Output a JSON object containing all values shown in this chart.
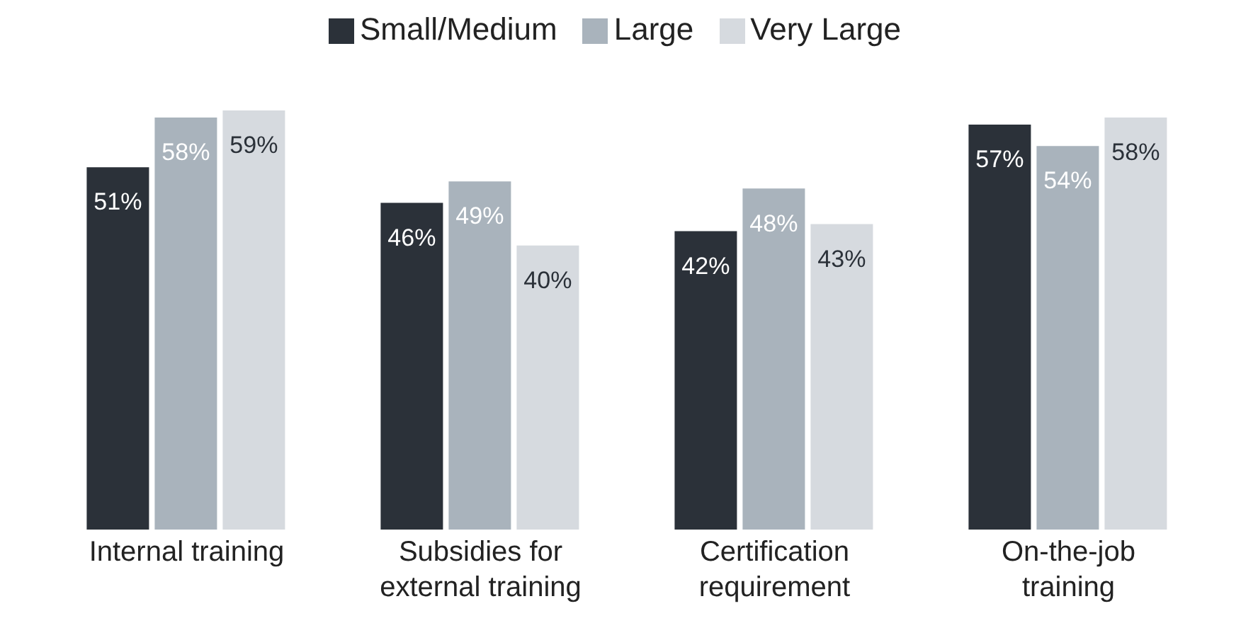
{
  "chart_data": {
    "type": "bar",
    "categories": [
      "Internal training",
      "Subsidies for external training",
      "Certification requirement",
      "On-the-job training"
    ],
    "series": [
      {
        "name": "Small/Medium",
        "color": "#2b3139",
        "values": [
          51,
          46,
          42,
          57
        ],
        "value_labels": [
          "51%",
          "46%",
          "42%",
          "57%"
        ]
      },
      {
        "name": "Large",
        "color": "#a9b3bc",
        "values": [
          58,
          49,
          48,
          54
        ],
        "value_labels": [
          "58%",
          "49%",
          "48%",
          "54%"
        ]
      },
      {
        "name": "Very Large",
        "color": "#d6dadf",
        "values": [
          59,
          40,
          43,
          58
        ],
        "value_labels": [
          "59%",
          "40%",
          "43%",
          "58%"
        ]
      }
    ],
    "legend": "top",
    "grid": false
  }
}
